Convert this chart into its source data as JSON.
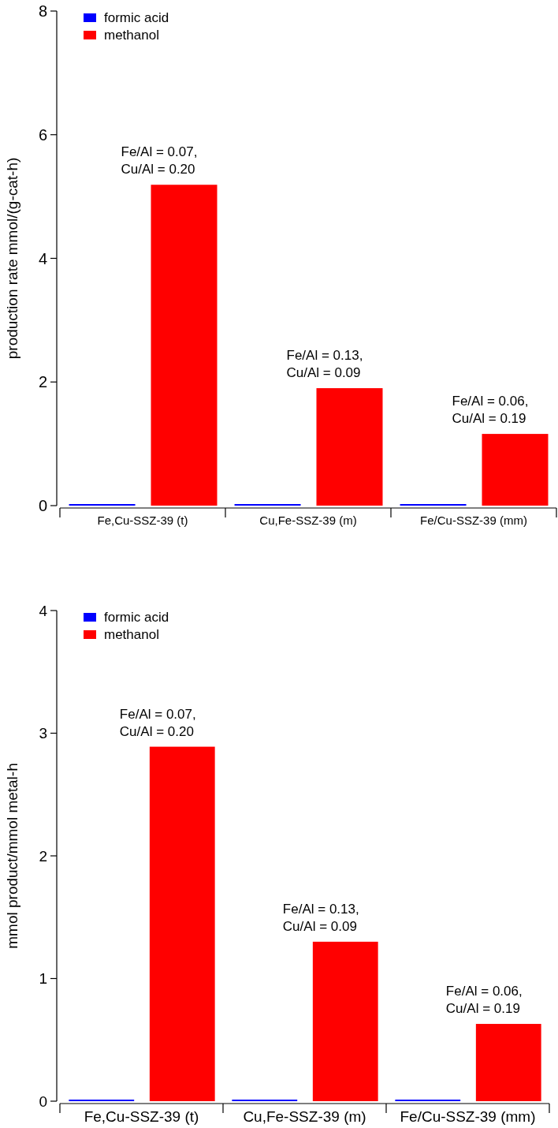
{
  "chart_data": [
    {
      "type": "bar",
      "ylabel": "production rate mmol/(g-cat-h)",
      "categories": [
        "Fe,Cu-SSZ-39 (t)",
        "Cu,Fe-SSZ-39 (m)",
        "Fe/Cu-SSZ-39 (mm)"
      ],
      "series": [
        {
          "name": "formic acid",
          "color": "#0000ff",
          "values": [
            0.02,
            0.02,
            0.02
          ]
        },
        {
          "name": "methanol",
          "color": "#ff0000",
          "values": [
            5.19,
            1.9,
            1.16
          ]
        }
      ],
      "ylim": [
        0,
        8
      ],
      "yticks": [
        0,
        2,
        4,
        6,
        8
      ],
      "grid": false,
      "legend": "top left",
      "annotations": [
        "Fe/Al = 0.07,\nCu/Al = 0.20",
        "Fe/Al = 0.13,\nCu/Al = 0.09",
        "Fe/Al = 0.06,\nCu/Al = 0.19"
      ]
    },
    {
      "type": "bar",
      "ylabel": "mmol product/mmol metal-h",
      "categories": [
        "Fe,Cu-SSZ-39 (t)",
        "Cu,Fe-SSZ-39 (m)",
        "Fe/Cu-SSZ-39 (mm)"
      ],
      "series": [
        {
          "name": "formic acid",
          "color": "#0000ff",
          "values": [
            0.01,
            0.01,
            0.01
          ]
        },
        {
          "name": "methanol",
          "color": "#ff0000",
          "values": [
            2.89,
            1.3,
            0.63
          ]
        }
      ],
      "ylim": [
        0,
        4
      ],
      "yticks": [
        0,
        1,
        2,
        3,
        4
      ],
      "grid": false,
      "legend": "top left",
      "annotations": [
        "Fe/Al = 0.07,\nCu/Al = 0.20",
        "Fe/Al = 0.13,\nCu/Al = 0.09",
        "Fe/Al = 0.06,\nCu/Al = 0.19"
      ]
    }
  ]
}
